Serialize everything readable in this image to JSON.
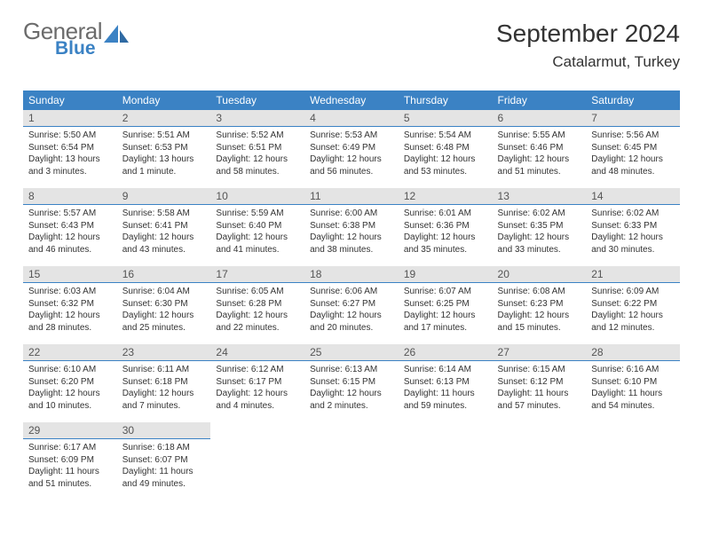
{
  "brand": {
    "general": "General",
    "blue": "Blue"
  },
  "header": {
    "title": "September 2024",
    "location": "Catalarmut, Turkey"
  },
  "style": {
    "accent": "#3b82c4",
    "daynum_bg": "#e4e4e4",
    "text": "#333333",
    "logo_gray": "#6b6b6b",
    "page_bg": "#ffffff"
  },
  "calendar": {
    "weekdays": [
      "Sunday",
      "Monday",
      "Tuesday",
      "Wednesday",
      "Thursday",
      "Friday",
      "Saturday"
    ],
    "start_offset": 0,
    "days": [
      {
        "n": 1,
        "sunrise": "5:50 AM",
        "sunset": "6:54 PM",
        "daylight": "13 hours and 3 minutes."
      },
      {
        "n": 2,
        "sunrise": "5:51 AM",
        "sunset": "6:53 PM",
        "daylight": "13 hours and 1 minute."
      },
      {
        "n": 3,
        "sunrise": "5:52 AM",
        "sunset": "6:51 PM",
        "daylight": "12 hours and 58 minutes."
      },
      {
        "n": 4,
        "sunrise": "5:53 AM",
        "sunset": "6:49 PM",
        "daylight": "12 hours and 56 minutes."
      },
      {
        "n": 5,
        "sunrise": "5:54 AM",
        "sunset": "6:48 PM",
        "daylight": "12 hours and 53 minutes."
      },
      {
        "n": 6,
        "sunrise": "5:55 AM",
        "sunset": "6:46 PM",
        "daylight": "12 hours and 51 minutes."
      },
      {
        "n": 7,
        "sunrise": "5:56 AM",
        "sunset": "6:45 PM",
        "daylight": "12 hours and 48 minutes."
      },
      {
        "n": 8,
        "sunrise": "5:57 AM",
        "sunset": "6:43 PM",
        "daylight": "12 hours and 46 minutes."
      },
      {
        "n": 9,
        "sunrise": "5:58 AM",
        "sunset": "6:41 PM",
        "daylight": "12 hours and 43 minutes."
      },
      {
        "n": 10,
        "sunrise": "5:59 AM",
        "sunset": "6:40 PM",
        "daylight": "12 hours and 41 minutes."
      },
      {
        "n": 11,
        "sunrise": "6:00 AM",
        "sunset": "6:38 PM",
        "daylight": "12 hours and 38 minutes."
      },
      {
        "n": 12,
        "sunrise": "6:01 AM",
        "sunset": "6:36 PM",
        "daylight": "12 hours and 35 minutes."
      },
      {
        "n": 13,
        "sunrise": "6:02 AM",
        "sunset": "6:35 PM",
        "daylight": "12 hours and 33 minutes."
      },
      {
        "n": 14,
        "sunrise": "6:02 AM",
        "sunset": "6:33 PM",
        "daylight": "12 hours and 30 minutes."
      },
      {
        "n": 15,
        "sunrise": "6:03 AM",
        "sunset": "6:32 PM",
        "daylight": "12 hours and 28 minutes."
      },
      {
        "n": 16,
        "sunrise": "6:04 AM",
        "sunset": "6:30 PM",
        "daylight": "12 hours and 25 minutes."
      },
      {
        "n": 17,
        "sunrise": "6:05 AM",
        "sunset": "6:28 PM",
        "daylight": "12 hours and 22 minutes."
      },
      {
        "n": 18,
        "sunrise": "6:06 AM",
        "sunset": "6:27 PM",
        "daylight": "12 hours and 20 minutes."
      },
      {
        "n": 19,
        "sunrise": "6:07 AM",
        "sunset": "6:25 PM",
        "daylight": "12 hours and 17 minutes."
      },
      {
        "n": 20,
        "sunrise": "6:08 AM",
        "sunset": "6:23 PM",
        "daylight": "12 hours and 15 minutes."
      },
      {
        "n": 21,
        "sunrise": "6:09 AM",
        "sunset": "6:22 PM",
        "daylight": "12 hours and 12 minutes."
      },
      {
        "n": 22,
        "sunrise": "6:10 AM",
        "sunset": "6:20 PM",
        "daylight": "12 hours and 10 minutes."
      },
      {
        "n": 23,
        "sunrise": "6:11 AM",
        "sunset": "6:18 PM",
        "daylight": "12 hours and 7 minutes."
      },
      {
        "n": 24,
        "sunrise": "6:12 AM",
        "sunset": "6:17 PM",
        "daylight": "12 hours and 4 minutes."
      },
      {
        "n": 25,
        "sunrise": "6:13 AM",
        "sunset": "6:15 PM",
        "daylight": "12 hours and 2 minutes."
      },
      {
        "n": 26,
        "sunrise": "6:14 AM",
        "sunset": "6:13 PM",
        "daylight": "11 hours and 59 minutes."
      },
      {
        "n": 27,
        "sunrise": "6:15 AM",
        "sunset": "6:12 PM",
        "daylight": "11 hours and 57 minutes."
      },
      {
        "n": 28,
        "sunrise": "6:16 AM",
        "sunset": "6:10 PM",
        "daylight": "11 hours and 54 minutes."
      },
      {
        "n": 29,
        "sunrise": "6:17 AM",
        "sunset": "6:09 PM",
        "daylight": "11 hours and 51 minutes."
      },
      {
        "n": 30,
        "sunrise": "6:18 AM",
        "sunset": "6:07 PM",
        "daylight": "11 hours and 49 minutes."
      }
    ],
    "labels": {
      "sunrise": "Sunrise:",
      "sunset": "Sunset:",
      "daylight": "Daylight:"
    }
  }
}
